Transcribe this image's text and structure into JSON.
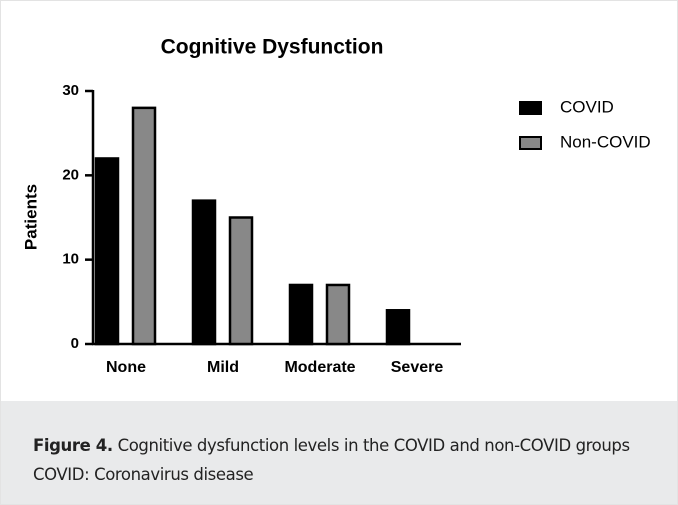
{
  "chart_data": {
    "type": "bar",
    "title": "Cognitive Dysfunction",
    "ylabel": "Patients",
    "categories": [
      "None",
      "Mild",
      "Moderate",
      "Severe"
    ],
    "series": [
      {
        "name": "COVID",
        "color": "#000000",
        "values": [
          22,
          17,
          7,
          4
        ]
      },
      {
        "name": "Non-COVID",
        "color": "#888888",
        "values": [
          28,
          15,
          7,
          0
        ]
      }
    ],
    "ylim": [
      0,
      30
    ],
    "yticks": [
      0,
      10,
      20,
      30
    ],
    "legend": "right"
  },
  "caption": {
    "label": "Figure 4.",
    "text": "Cognitive dysfunction levels in the COVID and non-COVID groups",
    "note": "COVID: Coronavirus disease"
  }
}
